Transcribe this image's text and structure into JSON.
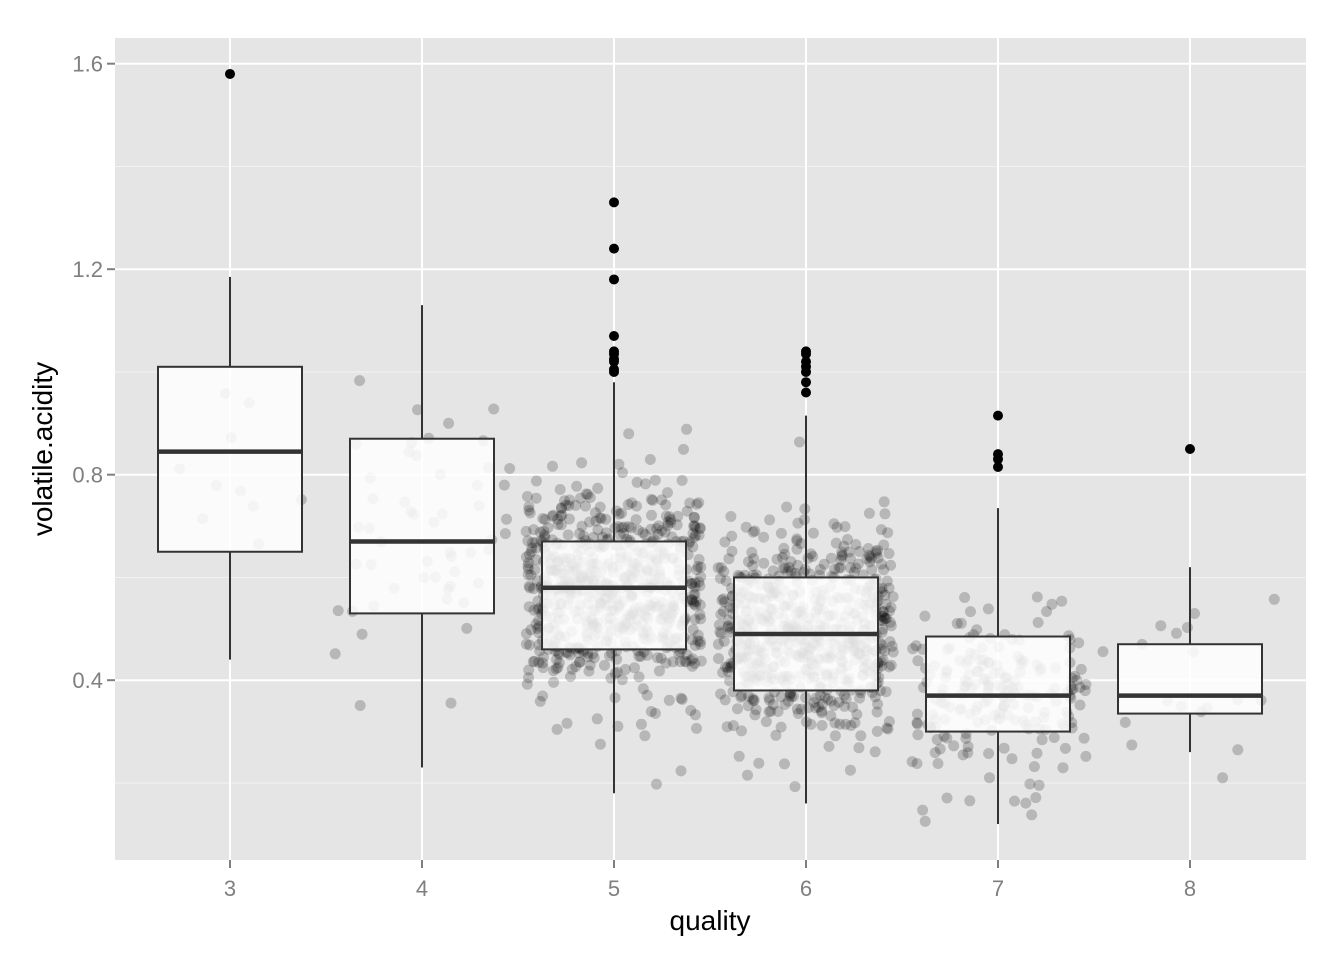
{
  "chart_data": {
    "type": "boxplot",
    "xlabel": "quality",
    "ylabel": "volatile.acidity",
    "categories": [
      "3",
      "4",
      "5",
      "6",
      "7",
      "8"
    ],
    "ylim": [
      0.05,
      1.65
    ],
    "yticks": [
      {
        "value": 0.4,
        "label": "0.4"
      },
      {
        "value": 0.8,
        "label": "0.8"
      },
      {
        "value": 1.2,
        "label": "1.2"
      },
      {
        "value": 1.6,
        "label": "1.6"
      }
    ],
    "grid": true,
    "boxes": [
      {
        "category": "3",
        "whisker_low": 0.44,
        "q1": 0.65,
        "median": 0.845,
        "q3": 1.01,
        "whisker_high": 1.185,
        "outliers": [
          1.58
        ]
      },
      {
        "category": "4",
        "whisker_low": 0.23,
        "q1": 0.53,
        "median": 0.67,
        "q3": 0.87,
        "whisker_high": 1.13,
        "outliers": []
      },
      {
        "category": "5",
        "whisker_low": 0.18,
        "q1": 0.46,
        "median": 0.58,
        "q3": 0.67,
        "whisker_high": 0.98,
        "outliers": [
          1.0,
          1.005,
          1.02,
          1.025,
          1.035,
          1.04,
          1.07,
          1.18,
          1.24,
          1.33
        ]
      },
      {
        "category": "6",
        "whisker_low": 0.16,
        "q1": 0.38,
        "median": 0.49,
        "q3": 0.6,
        "whisker_high": 0.915,
        "outliers": [
          0.96,
          0.98,
          1.0,
          1.01,
          1.02,
          1.035,
          1.04
        ]
      },
      {
        "category": "7",
        "whisker_low": 0.12,
        "q1": 0.3,
        "median": 0.37,
        "q3": 0.485,
        "whisker_high": 0.735,
        "outliers": [
          0.815,
          0.83,
          0.84,
          0.915
        ]
      },
      {
        "category": "8",
        "whisker_low": 0.26,
        "q1": 0.335,
        "median": 0.37,
        "q3": 0.47,
        "whisker_high": 0.62,
        "outliers": [
          0.85
        ]
      }
    ],
    "jitter_points": [
      {
        "category": "3",
        "n": 10,
        "sd": 0.17
      },
      {
        "category": "4",
        "n": 53,
        "sd": 0.22
      },
      {
        "category": "5",
        "n": 681,
        "sd": 0.17
      },
      {
        "category": "6",
        "n": 638,
        "sd": 0.16
      },
      {
        "category": "7",
        "n": 199,
        "sd": 0.15
      },
      {
        "category": "8",
        "n": 18,
        "sd": 0.14
      }
    ],
    "colors": {
      "panel": "#e5e5e5",
      "grid_major": "#ffffff",
      "grid_minor": "#f2f2f2",
      "box_fill": "#ffffff",
      "box_line": "#333333",
      "jitter": "#000000",
      "outlier": "#000000"
    }
  }
}
